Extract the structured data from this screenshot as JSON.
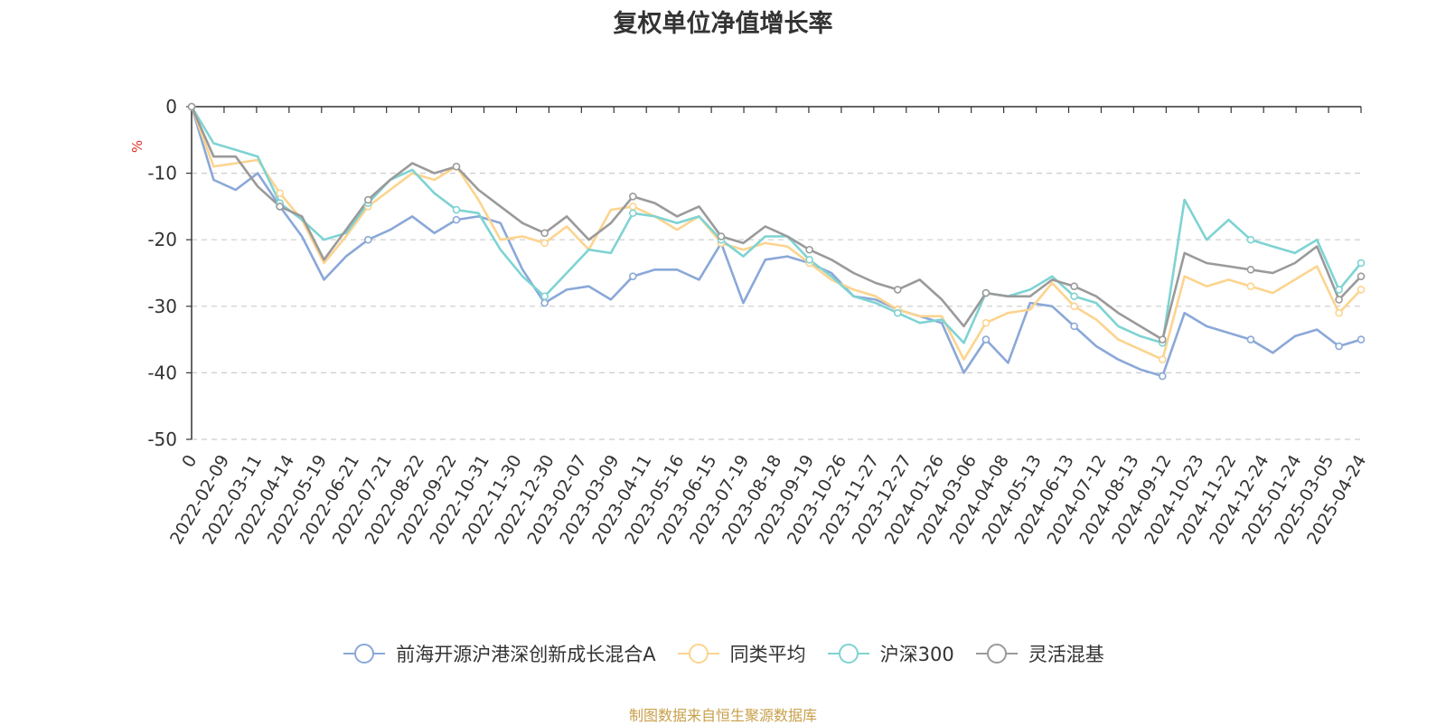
{
  "chart_data": {
    "type": "line",
    "title": "复权单位净值增长率",
    "ylabel": "%",
    "ylim": [
      -50,
      0
    ],
    "yticks": [
      0,
      -10,
      -20,
      -30,
      -40,
      -50
    ],
    "xtick_labels": [
      "0",
      "2022-02-09",
      "2022-03-11",
      "2022-04-14",
      "2022-05-19",
      "2022-06-21",
      "2022-07-21",
      "2022-08-22",
      "2022-09-22",
      "2022-10-31",
      "2022-11-30",
      "2022-12-30",
      "2023-02-07",
      "2023-03-09",
      "2023-04-11",
      "2023-05-16",
      "2023-06-15",
      "2023-07-19",
      "2023-08-18",
      "2023-09-19",
      "2023-10-26",
      "2023-11-27",
      "2023-12-27",
      "2024-01-26",
      "2024-03-06",
      "2024-04-08",
      "2024-05-13",
      "2024-06-13",
      "2024-07-12",
      "2024-08-13",
      "2024-09-12",
      "2024-10-23",
      "2024-11-22",
      "2024-12-24",
      "2025-01-24",
      "2025-03-05",
      "2025-04-24"
    ],
    "grid": "horizontal-dashed",
    "legend_position": "bottom",
    "series": [
      {
        "name": "前海开源沪港深创新成长混合A",
        "color": "#8aa8d8",
        "values": [
          0,
          -11,
          -12.5,
          -10,
          -15,
          -19.5,
          -26,
          -22.5,
          -20,
          -18.5,
          -16.5,
          -19,
          -17,
          -16.5,
          -17.5,
          -24.5,
          -29.5,
          -27.5,
          -27,
          -29,
          -25.5,
          -24.5,
          -24.5,
          -26,
          -20.5,
          -29.5,
          -23,
          -22.5,
          -23.5,
          -25,
          -28.5,
          -29,
          -30.5,
          -31.5,
          -32.5,
          -40,
          -35,
          -38.5,
          -29.5,
          -30,
          -33,
          -36,
          -38,
          -39.5,
          -40.5,
          -31,
          -33,
          -34,
          -35,
          -37,
          -34.5,
          -33.5,
          -36,
          -35
        ]
      },
      {
        "name": "同类平均",
        "color": "#fcd48f",
        "values": [
          0,
          -9,
          -8.5,
          -8,
          -13,
          -17,
          -23.5,
          -19.5,
          -15,
          -12.5,
          -10,
          -11,
          -9,
          -14,
          -20,
          -19.5,
          -20.5,
          -18,
          -21.5,
          -15.5,
          -15,
          -16.5,
          -18.5,
          -16.5,
          -20.5,
          -21.5,
          -20.5,
          -21,
          -23.5,
          -26,
          -27.5,
          -28.5,
          -30.5,
          -31.5,
          -31.5,
          -38,
          -32.5,
          -31,
          -30.5,
          -26.5,
          -30,
          -32,
          -35,
          -36.5,
          -38,
          -25.5,
          -27,
          -26,
          -27,
          -28,
          -26,
          -24,
          -31,
          -27.5
        ]
      },
      {
        "name": "沪深300",
        "color": "#7fd3d3",
        "values": [
          0,
          -5.5,
          -6.5,
          -7.5,
          -14.5,
          -17,
          -20,
          -19,
          -14.5,
          -11,
          -9.5,
          -13,
          -15.5,
          -16,
          -21.5,
          -25.5,
          -28.5,
          -25,
          -21.5,
          -22,
          -16,
          -16.5,
          -17.5,
          -16.5,
          -20,
          -22.5,
          -19.5,
          -19.5,
          -23,
          -25.5,
          -28.5,
          -29.5,
          -31,
          -32.5,
          -32,
          -35.5,
          -28,
          -28.5,
          -27.5,
          -25.5,
          -28.5,
          -29.5,
          -33,
          -34.5,
          -35.5,
          -14,
          -20,
          -17,
          -20,
          -21,
          -22,
          -20,
          -27.5,
          -23.5
        ]
      },
      {
        "name": "灵活混基",
        "color": "#9a9a9a",
        "values": [
          0,
          -7.5,
          -7.5,
          -12,
          -15,
          -16.5,
          -23,
          -18.5,
          -14,
          -11,
          -8.5,
          -10,
          -9,
          -12.5,
          -15,
          -17.5,
          -19,
          -16.5,
          -20,
          -17.5,
          -13.5,
          -14.5,
          -16.5,
          -15,
          -19.5,
          -20.5,
          -18,
          -19.5,
          -21.5,
          -23,
          -25,
          -26.5,
          -27.5,
          -26,
          -29,
          -33,
          -28,
          -28.5,
          -28.5,
          -26,
          -27,
          -28.5,
          -31,
          -33,
          -35,
          -22,
          -23.5,
          -24,
          -24.5,
          -25,
          -23.5,
          -21,
          -29,
          -25.5
        ]
      }
    ]
  },
  "footer": {
    "source": "制图数据来自恒生聚源数据库"
  }
}
